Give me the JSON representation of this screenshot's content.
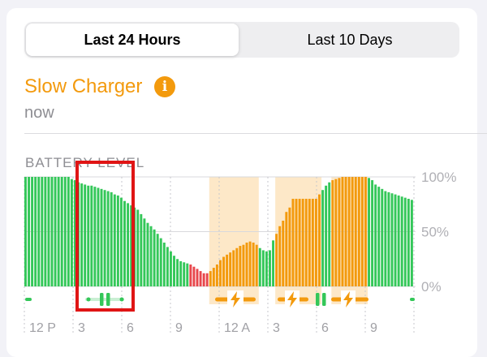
{
  "tabs": [
    {
      "label": "Last 24 Hours",
      "selected": true
    },
    {
      "label": "Last 10 Days",
      "selected": false
    }
  ],
  "charger": {
    "title": "Slow Charger",
    "subtitle": "now",
    "info_icon": "info-circle-icon",
    "accent": "#f39a0d"
  },
  "section_label": "BATTERY LEVEL",
  "chart_data": {
    "type": "bar",
    "ylabel_ticks": [
      "100%",
      "50%",
      "0%"
    ],
    "ylim": [
      0,
      100
    ],
    "xlabels": [
      "12 P",
      "3",
      "6",
      "9",
      "12 A",
      "3",
      "6",
      "9"
    ],
    "values": [
      100,
      100,
      100,
      100,
      100,
      100,
      100,
      100,
      100,
      100,
      100,
      100,
      100,
      100,
      98,
      97,
      95,
      94,
      93,
      92,
      92,
      91,
      90,
      89,
      88,
      87,
      86,
      84,
      83,
      81,
      78,
      76,
      74,
      72,
      70,
      66,
      62,
      58,
      55,
      52,
      48,
      44,
      40,
      36,
      32,
      28,
      25,
      23,
      22,
      21,
      20,
      18,
      16,
      14,
      12,
      12,
      14,
      17,
      20,
      24,
      27,
      29,
      31,
      33,
      35,
      37,
      38,
      40,
      41,
      40,
      38,
      35,
      33,
      32,
      33,
      42,
      48,
      55,
      60,
      68,
      72,
      80,
      80,
      80,
      80,
      80,
      80,
      80,
      80,
      84,
      88,
      92,
      95,
      97,
      98,
      99,
      100,
      100,
      100,
      100,
      100,
      100,
      100,
      100,
      99,
      97,
      93,
      91,
      89,
      87,
      86,
      85,
      84,
      83,
      82,
      81,
      80,
      79
    ],
    "low_values_from": 50,
    "low_values_to": 59,
    "charging_periods": [
      {
        "start": 56,
        "end": 70
      },
      {
        "start": 76,
        "end": 89
      },
      {
        "start": 93,
        "end": 103
      }
    ],
    "series_colors": {
      "normal": "#34c759",
      "charging": "#f39a0d",
      "low": "#e8474c",
      "charging_band": "#fde8c8"
    },
    "status_icons": [
      "charging-bolt-icon",
      "charging-bolt-icon",
      "pause-icon",
      "charging-bolt-icon",
      "pause-icon"
    ],
    "grid": true,
    "highlight_box_color": "#e01515"
  }
}
